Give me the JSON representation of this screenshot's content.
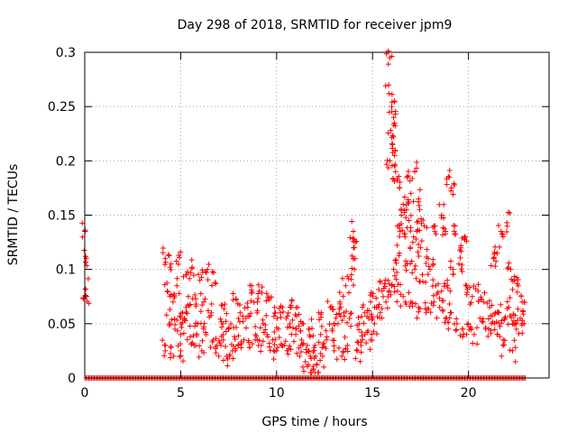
{
  "chart_data": {
    "type": "scatter",
    "title": "Day 298 of 2018, SRMTID for receiver jpm9",
    "xlabel": "GPS time / hours",
    "ylabel": "SRMTID / TECUs",
    "xlim": [
      0,
      24.2
    ],
    "ylim": [
      0,
      0.3
    ],
    "xticks": [
      0,
      5,
      10,
      15,
      20
    ],
    "xtick_labels": [
      "0",
      "5",
      "10",
      "15",
      "20"
    ],
    "yticks": [
      0,
      0.05,
      0.1,
      0.15,
      0.2,
      0.25,
      0.3
    ],
    "ytick_labels": [
      "0",
      "0.05",
      "0.1",
      "0.15",
      "0.2",
      "0.25",
      "0.3"
    ],
    "grid": true,
    "marker": "+",
    "color": "#ff0000",
    "series": [
      {
        "name": "SRMTID",
        "points": [
          [
            0.02,
            0.135
          ],
          [
            0.05,
            0.112
          ],
          [
            0.03,
            0.082
          ],
          [
            0.06,
            0.075
          ],
          [
            4.2,
            0.11
          ],
          [
            4.5,
            0.105
          ],
          [
            4.9,
            0.113
          ],
          [
            5.3,
            0.095
          ],
          [
            5.6,
            0.102
          ],
          [
            6.0,
            0.09
          ],
          [
            6.4,
            0.1
          ],
          [
            6.8,
            0.088
          ],
          [
            4.3,
            0.08
          ],
          [
            4.6,
            0.07
          ],
          [
            4.8,
            0.085
          ],
          [
            5.1,
            0.06
          ],
          [
            5.4,
            0.075
          ],
          [
            5.8,
            0.068
          ],
          [
            6.2,
            0.07
          ],
          [
            6.6,
            0.06
          ],
          [
            4.4,
            0.05
          ],
          [
            4.7,
            0.045
          ],
          [
            5.0,
            0.04
          ],
          [
            5.2,
            0.055
          ],
          [
            5.5,
            0.038
          ],
          [
            5.9,
            0.05
          ],
          [
            6.3,
            0.042
          ],
          [
            6.7,
            0.035
          ],
          [
            4.2,
            0.03
          ],
          [
            4.5,
            0.028
          ],
          [
            5.0,
            0.025
          ],
          [
            5.7,
            0.03
          ],
          [
            6.1,
            0.025
          ],
          [
            6.9,
            0.03
          ],
          [
            7.2,
            0.05
          ],
          [
            7.5,
            0.045
          ],
          [
            7.8,
            0.038
          ],
          [
            8.1,
            0.06
          ],
          [
            8.4,
            0.055
          ],
          [
            8.7,
            0.085
          ],
          [
            9.0,
            0.07
          ],
          [
            9.3,
            0.05
          ],
          [
            7.1,
            0.03
          ],
          [
            7.4,
            0.02
          ],
          [
            7.7,
            0.025
          ],
          [
            8.0,
            0.03
          ],
          [
            8.3,
            0.035
          ],
          [
            8.6,
            0.028
          ],
          [
            8.9,
            0.04
          ],
          [
            9.2,
            0.03
          ],
          [
            7.3,
            0.068
          ],
          [
            7.9,
            0.072
          ],
          [
            8.5,
            0.065
          ],
          [
            9.1,
            0.08
          ],
          [
            9.6,
            0.072
          ],
          [
            9.9,
            0.065
          ],
          [
            9.5,
            0.04
          ],
          [
            9.8,
            0.035
          ],
          [
            10.1,
            0.045
          ],
          [
            10.4,
            0.03
          ],
          [
            10.7,
            0.05
          ],
          [
            11.0,
            0.04
          ],
          [
            11.3,
            0.035
          ],
          [
            11.6,
            0.03
          ],
          [
            10.2,
            0.06
          ],
          [
            10.5,
            0.055
          ],
          [
            10.8,
            0.072
          ],
          [
            11.1,
            0.065
          ],
          [
            11.4,
            0.05
          ],
          [
            11.7,
            0.045
          ],
          [
            10.0,
            0.025
          ],
          [
            10.6,
            0.022
          ],
          [
            11.2,
            0.02
          ],
          [
            11.5,
            0.015
          ],
          [
            11.8,
            0.018
          ],
          [
            12.1,
            0.012
          ],
          [
            12.4,
            0.02
          ],
          [
            11.9,
            0.008
          ],
          [
            12.0,
            0.03
          ],
          [
            12.3,
            0.04
          ],
          [
            12.6,
            0.035
          ],
          [
            12.9,
            0.045
          ],
          [
            13.2,
            0.05
          ],
          [
            13.5,
            0.06
          ],
          [
            13.8,
            0.055
          ],
          [
            12.2,
            0.06
          ],
          [
            12.8,
            0.065
          ],
          [
            13.3,
            0.07
          ],
          [
            13.6,
            0.085
          ],
          [
            13.9,
            0.095
          ],
          [
            14.0,
            0.11
          ],
          [
            14.1,
            0.125
          ],
          [
            14.0,
            0.135
          ],
          [
            13.0,
            0.025
          ],
          [
            13.4,
            0.02
          ],
          [
            13.7,
            0.03
          ],
          [
            14.2,
            0.025
          ],
          [
            14.4,
            0.03
          ],
          [
            14.6,
            0.04
          ],
          [
            14.9,
            0.035
          ],
          [
            14.3,
            0.05
          ],
          [
            14.6,
            0.06
          ],
          [
            14.9,
            0.07
          ],
          [
            15.2,
            0.065
          ],
          [
            15.5,
            0.08
          ],
          [
            15.8,
            0.09
          ],
          [
            16.1,
            0.1
          ],
          [
            14.8,
            0.055
          ],
          [
            15.1,
            0.05
          ],
          [
            15.4,
            0.06
          ],
          [
            15.7,
            0.07
          ],
          [
            16.0,
            0.085
          ],
          [
            16.3,
            0.08
          ],
          [
            16.6,
            0.075
          ],
          [
            15.9,
            0.295
          ],
          [
            15.85,
            0.262
          ],
          [
            16.0,
            0.25
          ],
          [
            16.1,
            0.24
          ],
          [
            15.95,
            0.228
          ],
          [
            16.05,
            0.215
          ],
          [
            16.15,
            0.205
          ],
          [
            15.9,
            0.2
          ],
          [
            16.2,
            0.19
          ],
          [
            16.4,
            0.175
          ],
          [
            16.6,
            0.16
          ],
          [
            16.8,
            0.185
          ],
          [
            17.0,
            0.17
          ],
          [
            17.2,
            0.19
          ],
          [
            17.4,
            0.165
          ],
          [
            16.5,
            0.15
          ],
          [
            16.3,
            0.14
          ],
          [
            16.7,
            0.13
          ],
          [
            16.9,
            0.145
          ],
          [
            17.1,
            0.125
          ],
          [
            17.3,
            0.135
          ],
          [
            17.5,
            0.12
          ],
          [
            17.7,
            0.14
          ],
          [
            17.9,
            0.11
          ],
          [
            16.4,
            0.115
          ],
          [
            16.8,
            0.105
          ],
          [
            17.2,
            0.1
          ],
          [
            17.6,
            0.095
          ],
          [
            18.0,
            0.1
          ],
          [
            18.3,
            0.085
          ],
          [
            18.6,
            0.08
          ],
          [
            18.9,
            0.09
          ],
          [
            17.0,
            0.07
          ],
          [
            17.4,
            0.065
          ],
          [
            17.8,
            0.06
          ],
          [
            18.2,
            0.07
          ],
          [
            18.5,
            0.065
          ],
          [
            18.8,
            0.055
          ],
          [
            19.1,
            0.06
          ],
          [
            19.4,
            0.05
          ],
          [
            18.2,
            0.14
          ],
          [
            18.6,
            0.15
          ],
          [
            18.8,
            0.135
          ],
          [
            19.0,
            0.185
          ],
          [
            19.1,
            0.175
          ],
          [
            19.3,
            0.14
          ],
          [
            19.6,
            0.12
          ],
          [
            19.8,
            0.13
          ],
          [
            19.2,
            0.1
          ],
          [
            19.5,
            0.105
          ],
          [
            19.9,
            0.085
          ],
          [
            20.2,
            0.075
          ],
          [
            20.5,
            0.08
          ],
          [
            20.8,
            0.07
          ],
          [
            21.1,
            0.065
          ],
          [
            21.4,
            0.06
          ],
          [
            19.7,
            0.045
          ],
          [
            20.0,
            0.05
          ],
          [
            20.3,
            0.04
          ],
          [
            20.6,
            0.055
          ],
          [
            20.9,
            0.045
          ],
          [
            21.2,
            0.05
          ],
          [
            21.5,
            0.04
          ],
          [
            21.8,
            0.03
          ],
          [
            21.3,
            0.11
          ],
          [
            21.5,
            0.115
          ],
          [
            21.7,
            0.135
          ],
          [
            22.0,
            0.143
          ],
          [
            22.2,
            0.1
          ],
          [
            22.4,
            0.09
          ],
          [
            22.6,
            0.085
          ],
          [
            22.8,
            0.07
          ],
          [
            21.6,
            0.06
          ],
          [
            21.9,
            0.055
          ],
          [
            22.1,
            0.065
          ],
          [
            22.3,
            0.05
          ],
          [
            22.5,
            0.045
          ],
          [
            22.7,
            0.055
          ],
          [
            22.9,
            0.05
          ],
          [
            22.3,
            0.025
          ],
          [
            0.0,
            0.0
          ],
          [
            2.0,
            0.0
          ],
          [
            4.0,
            0.0
          ],
          [
            6.0,
            0.0
          ],
          [
            8.0,
            0.0
          ],
          [
            10.0,
            0.0
          ],
          [
            12.0,
            0.0
          ],
          [
            14.0,
            0.0
          ],
          [
            16.0,
            0.0
          ],
          [
            18.0,
            0.0
          ],
          [
            20.0,
            0.0
          ],
          [
            22.0,
            0.0
          ]
        ]
      }
    ]
  }
}
